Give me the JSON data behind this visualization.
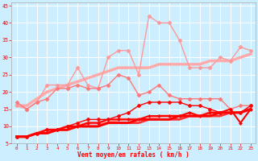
{
  "xlabel": "Vent moyen/en rafales ( km/h )",
  "bg_color": "#cceeff",
  "grid_color": "#ffffff",
  "xlim": [
    -0.5,
    23.5
  ],
  "ylim": [
    5,
    46
  ],
  "yticks": [
    5,
    10,
    15,
    20,
    25,
    30,
    35,
    40,
    45
  ],
  "xticks": [
    0,
    1,
    2,
    3,
    4,
    5,
    6,
    7,
    8,
    9,
    10,
    11,
    12,
    13,
    14,
    15,
    16,
    17,
    18,
    19,
    20,
    21,
    22,
    23
  ],
  "lines": [
    {
      "x": [
        0,
        1,
        2,
        3,
        4,
        5,
        6,
        7,
        8,
        9,
        10,
        11,
        12,
        13,
        14,
        15,
        16,
        17,
        18,
        19,
        20,
        21,
        22,
        23
      ],
      "y": [
        16,
        16,
        18,
        20,
        21,
        22,
        23,
        24,
        25,
        26,
        27,
        27,
        27,
        27,
        28,
        28,
        28,
        28,
        28,
        29,
        29,
        29,
        30,
        31
      ],
      "color": "#ffaaaa",
      "lw": 2.5,
      "marker": null,
      "ms": 0,
      "zorder": 2
    },
    {
      "x": [
        0,
        1,
        2,
        3,
        4,
        5,
        6,
        7,
        8,
        9,
        10,
        11,
        12,
        13,
        14,
        15,
        16,
        17,
        18,
        19,
        20,
        21,
        22,
        23
      ],
      "y": [
        16,
        15,
        17,
        22,
        22,
        22,
        27,
        22,
        21,
        30,
        32,
        32,
        25,
        42,
        40,
        40,
        35,
        27,
        27,
        27,
        30,
        29,
        33,
        32
      ],
      "color": "#ff9999",
      "lw": 1.0,
      "marker": "D",
      "ms": 2.5,
      "zorder": 4
    },
    {
      "x": [
        0,
        1,
        2,
        3,
        4,
        5,
        6,
        7,
        8,
        9,
        10,
        11,
        12,
        13,
        14,
        15,
        16,
        17,
        18,
        19,
        20,
        21,
        22,
        23
      ],
      "y": [
        17,
        15,
        17,
        18,
        21,
        21,
        22,
        21,
        21,
        22,
        25,
        24,
        19,
        20,
        22,
        19,
        18,
        18,
        18,
        18,
        18,
        15,
        16,
        16
      ],
      "color": "#ff7777",
      "lw": 1.0,
      "marker": "D",
      "ms": 2.5,
      "zorder": 4
    },
    {
      "x": [
        0,
        1,
        2,
        3,
        4,
        5,
        6,
        7,
        8,
        9,
        10,
        11,
        12,
        13,
        14,
        15,
        16,
        17,
        18,
        19,
        20,
        21,
        22,
        23
      ],
      "y": [
        7,
        7,
        8,
        9,
        9,
        10,
        10,
        11,
        11,
        11,
        12,
        12,
        12,
        12,
        13,
        13,
        13,
        13,
        13,
        14,
        14,
        14,
        14,
        15
      ],
      "color": "#ff9999",
      "lw": 2.5,
      "marker": null,
      "ms": 0,
      "zorder": 2
    },
    {
      "x": [
        0,
        1,
        2,
        3,
        4,
        5,
        6,
        7,
        8,
        9,
        10,
        11,
        12,
        13,
        14,
        15,
        16,
        17,
        18,
        19,
        20,
        21,
        22,
        23
      ],
      "y": [
        7,
        7,
        8,
        8,
        9,
        9,
        10,
        10,
        10,
        11,
        11,
        11,
        11,
        12,
        12,
        12,
        12,
        13,
        13,
        13,
        13,
        14,
        14,
        15
      ],
      "color": "#ff3333",
      "lw": 2.0,
      "marker": null,
      "ms": 0,
      "zorder": 2
    },
    {
      "x": [
        0,
        1,
        2,
        3,
        4,
        5,
        6,
        7,
        8,
        9,
        10,
        11,
        12,
        13,
        14,
        15,
        16,
        17,
        18,
        19,
        20,
        21,
        22,
        23
      ],
      "y": [
        7,
        7,
        8,
        8,
        9,
        9,
        10,
        10,
        10,
        11,
        11,
        11,
        12,
        12,
        12,
        12,
        13,
        13,
        13,
        13,
        14,
        14,
        14,
        15
      ],
      "color": "#ff0000",
      "lw": 2.0,
      "marker": null,
      "ms": 0,
      "zorder": 2
    },
    {
      "x": [
        0,
        1,
        2,
        3,
        4,
        5,
        6,
        7,
        8,
        9,
        10,
        11,
        12,
        13,
        14,
        15,
        16,
        17,
        18,
        19,
        20,
        21,
        22,
        23
      ],
      "y": [
        7,
        7,
        8,
        9,
        9,
        10,
        11,
        12,
        12,
        12,
        13,
        14,
        16,
        17,
        17,
        17,
        17,
        16,
        16,
        15,
        14,
        14,
        14,
        16
      ],
      "color": "#ff0000",
      "lw": 1.0,
      "marker": "P",
      "ms": 3,
      "zorder": 4
    },
    {
      "x": [
        0,
        1,
        2,
        3,
        4,
        5,
        6,
        7,
        8,
        9,
        10,
        11,
        12,
        13,
        14,
        15,
        16,
        17,
        18,
        19,
        20,
        21,
        22,
        23
      ],
      "y": [
        7,
        7,
        8,
        9,
        9,
        10,
        10,
        11,
        11,
        12,
        12,
        12,
        12,
        13,
        13,
        13,
        13,
        14,
        13,
        14,
        14,
        15,
        11,
        15
      ],
      "color": "#ff0000",
      "lw": 1.5,
      "marker": "D",
      "ms": 2,
      "zorder": 4
    }
  ]
}
